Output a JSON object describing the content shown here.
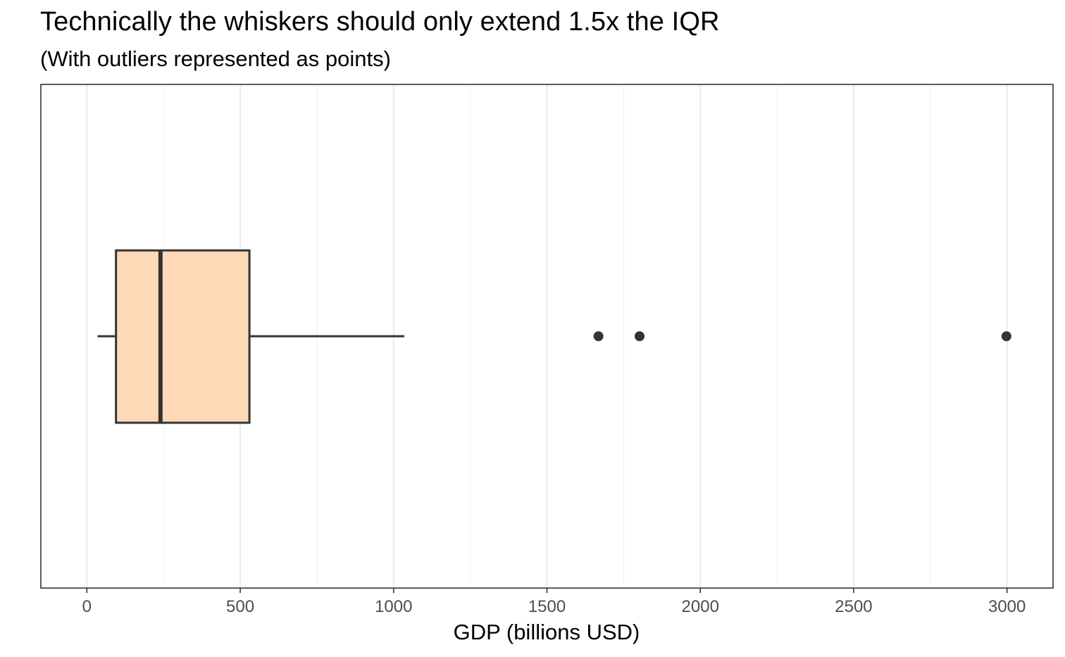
{
  "chart_data": {
    "type": "boxplot",
    "title": "Technically the whiskers should only extend 1.5x the IQR",
    "subtitle": "(With outliers represented as points)",
    "xlabel": "GDP (billions USD)",
    "ylabel": "",
    "orientation": "horizontal",
    "xlim": [
      -150,
      3150
    ],
    "x_ticks": [
      0,
      500,
      1000,
      1500,
      2000,
      2500,
      3000
    ],
    "x_tick_labels": [
      "0",
      "500",
      "1000",
      "1500",
      "2000",
      "2500",
      "3000"
    ],
    "grid": true,
    "box": {
      "whisker_low": 35,
      "q1": 95,
      "median": 240,
      "q3": 530,
      "whisker_high": 1035,
      "outliers": [
        1668,
        1802,
        2998
      ]
    },
    "colors": {
      "box_fill": "#fed9b7",
      "box_line": "#333333",
      "outlier": "#333333",
      "grid_major": "#ebebeb",
      "grid_minor": "#f2f2f2",
      "panel_border": "#333333"
    }
  }
}
